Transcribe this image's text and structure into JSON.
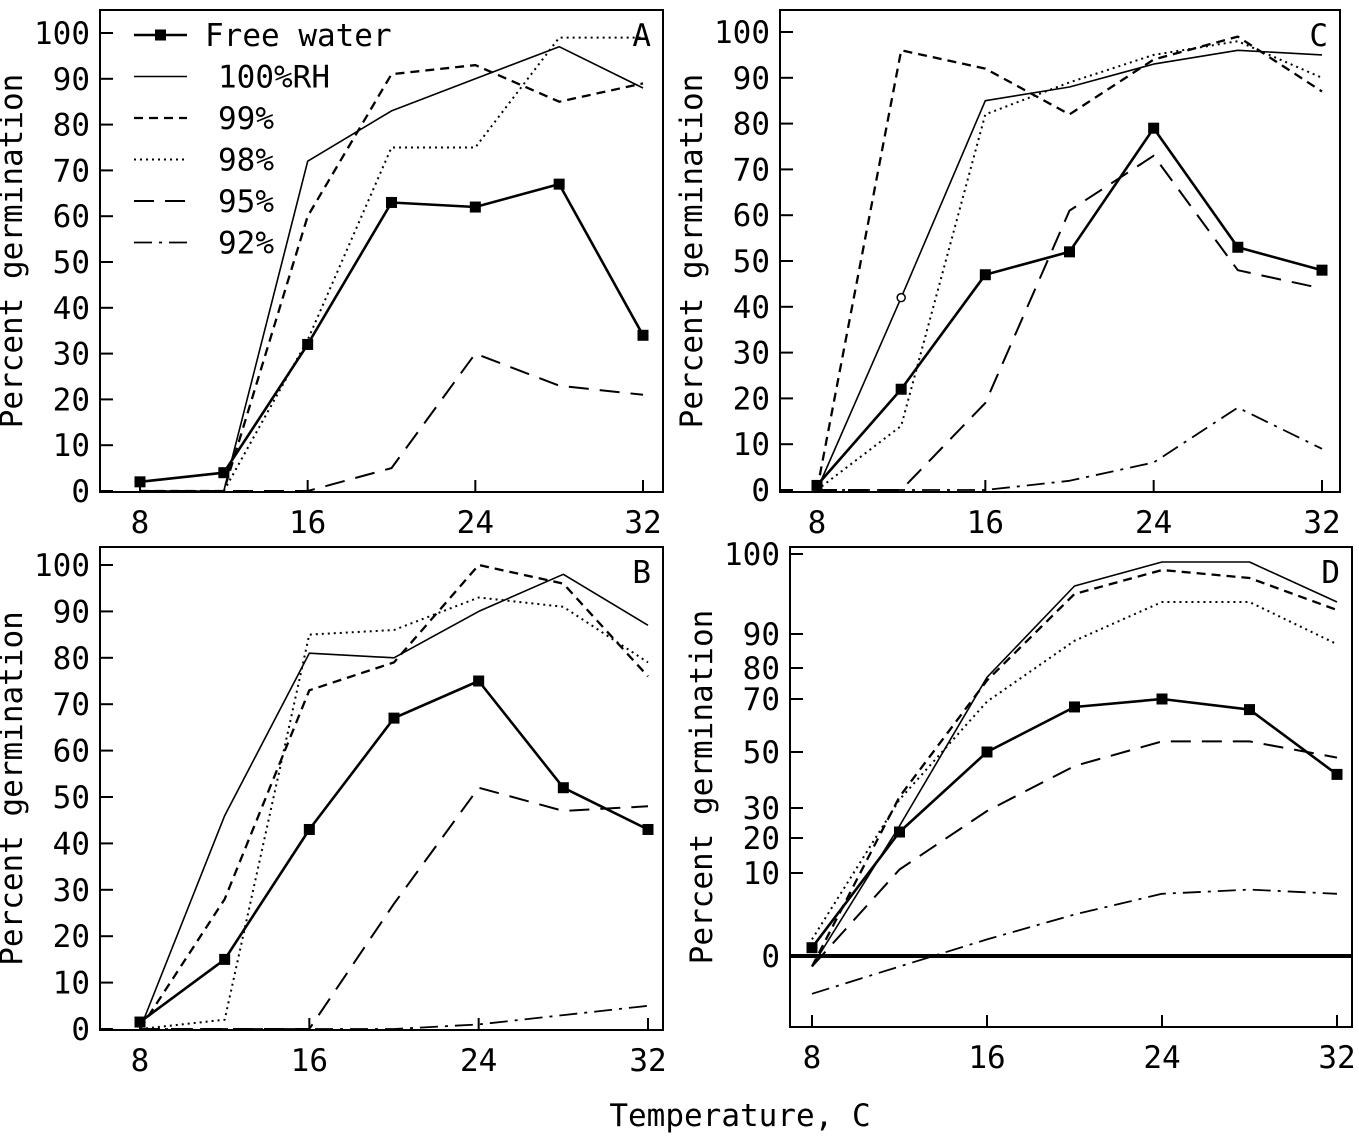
{
  "figure": {
    "xlabel": "Temperature, C"
  },
  "legend": {
    "entries": [
      {
        "label": "Free water",
        "style": "free"
      },
      {
        "label": "100%RH",
        "style": "solid"
      },
      {
        "label": "99%",
        "style": "shortdash"
      },
      {
        "label": "98%",
        "style": "dotted"
      },
      {
        "label": "95%",
        "style": "longdash"
      },
      {
        "label": "92%",
        "style": "dashdot"
      }
    ]
  },
  "chart_data": [
    {
      "type": "line",
      "panel_label": "A",
      "ylabel": "Percent germination",
      "xlim": [
        8,
        32
      ],
      "ylim": [
        0,
        100
      ],
      "xticks": [
        8,
        16,
        24,
        32
      ],
      "yticks": [
        0,
        10,
        20,
        30,
        40,
        50,
        60,
        70,
        80,
        90,
        100
      ],
      "series": [
        {
          "name": "Free water",
          "style": "free",
          "x": [
            8,
            12,
            16,
            20,
            24,
            28,
            32
          ],
          "y": [
            2,
            4,
            32,
            63,
            62,
            67,
            34
          ]
        },
        {
          "name": "100%RH",
          "style": "solid",
          "x": [
            8,
            12,
            16,
            20,
            24,
            28,
            32
          ],
          "y": [
            0,
            0,
            72,
            83,
            90,
            97,
            88
          ]
        },
        {
          "name": "99%",
          "style": "shortdash",
          "x": [
            8,
            12,
            16,
            20,
            24,
            28,
            32
          ],
          "y": [
            0,
            0,
            60,
            91,
            93,
            85,
            89
          ]
        },
        {
          "name": "98%",
          "style": "dotted",
          "x": [
            8,
            12,
            16,
            20,
            24,
            28,
            32
          ],
          "y": [
            0,
            0,
            33,
            75,
            75,
            99,
            99
          ]
        },
        {
          "name": "95%",
          "style": "longdash",
          "x": [
            8,
            12,
            16,
            20,
            24,
            28,
            32
          ],
          "y": [
            0,
            0,
            0,
            5,
            30,
            23,
            21
          ]
        }
      ]
    },
    {
      "type": "line",
      "panel_label": "B",
      "ylabel": "Percent germination",
      "xlim": [
        8,
        32
      ],
      "ylim": [
        0,
        100
      ],
      "xticks": [
        8,
        16,
        24,
        32
      ],
      "yticks": [
        0,
        10,
        20,
        30,
        40,
        50,
        60,
        70,
        80,
        90,
        100
      ],
      "series": [
        {
          "name": "Free water",
          "style": "free",
          "x": [
            8,
            12,
            16,
            20,
            24,
            28,
            32
          ],
          "y": [
            1.5,
            15,
            43,
            67,
            75,
            52,
            43
          ]
        },
        {
          "name": "100%RH",
          "style": "solid",
          "x": [
            8,
            12,
            16,
            20,
            24,
            28,
            32
          ],
          "y": [
            0,
            46,
            81,
            80,
            90,
            98,
            87
          ]
        },
        {
          "name": "99%",
          "style": "shortdash",
          "x": [
            8,
            12,
            16,
            20,
            24,
            28,
            32
          ],
          "y": [
            0,
            28,
            73,
            79,
            100,
            96,
            76
          ]
        },
        {
          "name": "98%",
          "style": "dotted",
          "x": [
            8,
            12,
            16,
            20,
            24,
            28,
            32
          ],
          "y": [
            0,
            2,
            85,
            86,
            93,
            91,
            79
          ]
        },
        {
          "name": "95%",
          "style": "longdash",
          "x": [
            8,
            12,
            16,
            20,
            24,
            28,
            32
          ],
          "y": [
            0,
            0,
            0,
            27,
            52,
            47,
            48
          ]
        },
        {
          "name": "92%",
          "style": "dashdot",
          "x": [
            8,
            12,
            16,
            20,
            24,
            28,
            32
          ],
          "y": [
            0,
            0,
            0,
            0,
            1,
            3,
            5
          ]
        }
      ]
    },
    {
      "type": "line",
      "panel_label": "C",
      "ylabel": "Percent germination",
      "xlim": [
        8,
        32
      ],
      "ylim": [
        0,
        100
      ],
      "xticks": [
        8,
        16,
        24,
        32
      ],
      "yticks": [
        0,
        10,
        20,
        30,
        40,
        50,
        60,
        70,
        80,
        90,
        100
      ],
      "series": [
        {
          "name": "Free water",
          "style": "free",
          "x": [
            8,
            12,
            16,
            20,
            24,
            28,
            32
          ],
          "y": [
            1,
            22,
            47,
            52,
            79,
            53,
            48
          ]
        },
        {
          "name": "100%RH",
          "style": "solid",
          "x": [
            8,
            12,
            16,
            20,
            24,
            28,
            32
          ],
          "y": [
            0,
            42,
            85,
            88,
            93,
            96,
            95
          ]
        },
        {
          "name": "99%",
          "style": "shortdash",
          "x": [
            8,
            12,
            16,
            20,
            24,
            28,
            32
          ],
          "y": [
            0,
            96,
            92,
            82,
            94,
            99,
            87
          ]
        },
        {
          "name": "98%",
          "style": "dotted",
          "x": [
            8,
            12,
            16,
            20,
            24,
            28,
            32
          ],
          "y": [
            0,
            14,
            82,
            89,
            95,
            98,
            90
          ]
        },
        {
          "name": "95%",
          "style": "longdash",
          "x": [
            8,
            12,
            16,
            20,
            24,
            28,
            32
          ],
          "y": [
            0,
            0,
            19,
            61,
            73,
            48,
            44
          ]
        },
        {
          "name": "92%",
          "style": "dashdot",
          "x": [
            8,
            12,
            16,
            20,
            24,
            28,
            32
          ],
          "y": [
            0,
            0,
            0,
            2,
            6,
            18,
            9
          ]
        }
      ]
    },
    {
      "type": "line",
      "panel_label": "D",
      "ylabel": "Percent germination",
      "xlim": [
        8,
        32
      ],
      "ylim": [
        -4,
        100
      ],
      "y_scale": "nonlinear (probit-like)",
      "xticks": [
        8,
        16,
        24,
        32
      ],
      "yticks": [
        0,
        10,
        20,
        30,
        50,
        70,
        80,
        90,
        100
      ],
      "series": [
        {
          "name": "Free water",
          "style": "free",
          "x": [
            8,
            12,
            16,
            20,
            24,
            28,
            32
          ],
          "y": [
            1,
            22,
            50,
            67,
            70,
            66,
            42
          ]
        },
        {
          "name": "100%RH",
          "style": "solid",
          "x": [
            8,
            12,
            16,
            20,
            24,
            28,
            32
          ],
          "y": [
            -1,
            24,
            77,
            96,
            99,
            99,
            94
          ]
        },
        {
          "name": "99%",
          "style": "shortdash",
          "x": [
            8,
            12,
            16,
            20,
            24,
            28,
            32
          ],
          "y": [
            -1,
            34,
            76,
            95,
            98,
            97,
            93
          ]
        },
        {
          "name": "98%",
          "style": "dotted",
          "x": [
            8,
            12,
            16,
            20,
            24,
            28,
            32
          ],
          "y": [
            2,
            33,
            69,
            88,
            94,
            94,
            87
          ]
        },
        {
          "name": "95%",
          "style": "longdash",
          "x": [
            8,
            12,
            16,
            20,
            24,
            28,
            32
          ],
          "y": [
            -1,
            11,
            29,
            45,
            54,
            54,
            48
          ]
        },
        {
          "name": "92%",
          "style": "dashdot",
          "x": [
            8,
            12,
            16,
            20,
            24,
            28,
            32
          ],
          "y": [
            -3.6,
            -1,
            2,
            5,
            7.5,
            8,
            7.5
          ]
        }
      ]
    }
  ]
}
